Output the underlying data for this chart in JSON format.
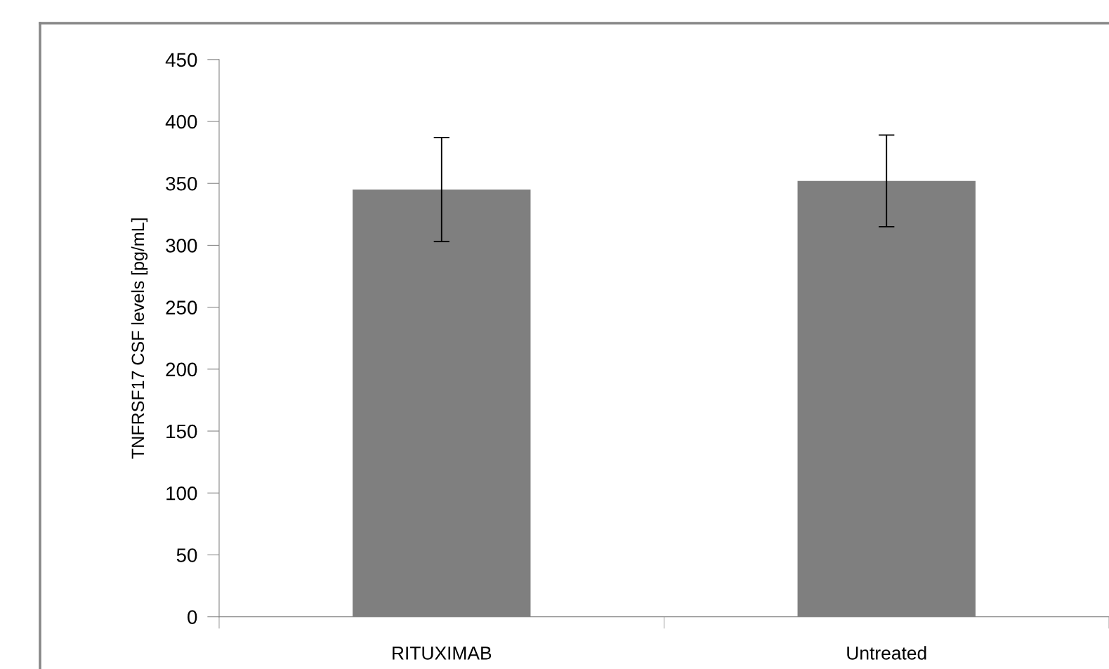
{
  "chart_data": {
    "type": "bar",
    "ylabel": "TNFRSF17 CSF levels [pg/mL]",
    "categories": [
      "RITUXIMAB",
      "Untreated"
    ],
    "values": [
      345,
      352
    ],
    "errors": [
      42,
      37
    ],
    "color": "#7f7f7f",
    "ylim": [
      0,
      450
    ],
    "yticks": [
      0,
      50,
      100,
      150,
      200,
      250,
      300,
      350,
      400,
      450
    ],
    "grid": false,
    "legend": false
  }
}
